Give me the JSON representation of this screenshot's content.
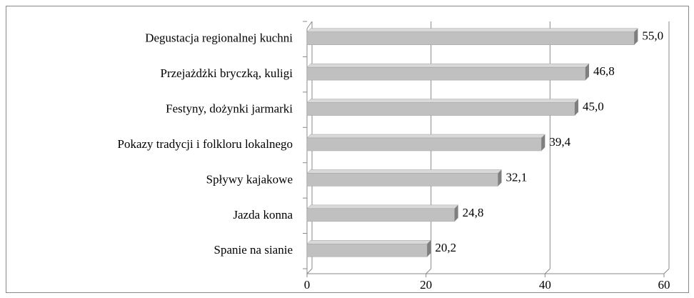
{
  "chart_data": {
    "type": "bar3d_horizontal",
    "categories": [
      "Degustacja regionalnej kuchni",
      "Przejażdżki bryczką, kuligi",
      "Festyny, dożynki jarmarki",
      "Pokazy tradycji i folkloru lokalnego",
      "Spływy kajakowe",
      "Jazda konna",
      "Spanie na sianie"
    ],
    "values": [
      55.0,
      46.8,
      45.0,
      39.4,
      32.1,
      24.8,
      20.2
    ],
    "value_labels": [
      "55,0",
      "46,8",
      "45,0",
      "39,4",
      "32,1",
      "24,8",
      "20,2"
    ],
    "color": "#c0c0c0",
    "xlim": [
      0,
      60
    ],
    "xticks": [
      0,
      20,
      40,
      60
    ],
    "grid": true
  }
}
